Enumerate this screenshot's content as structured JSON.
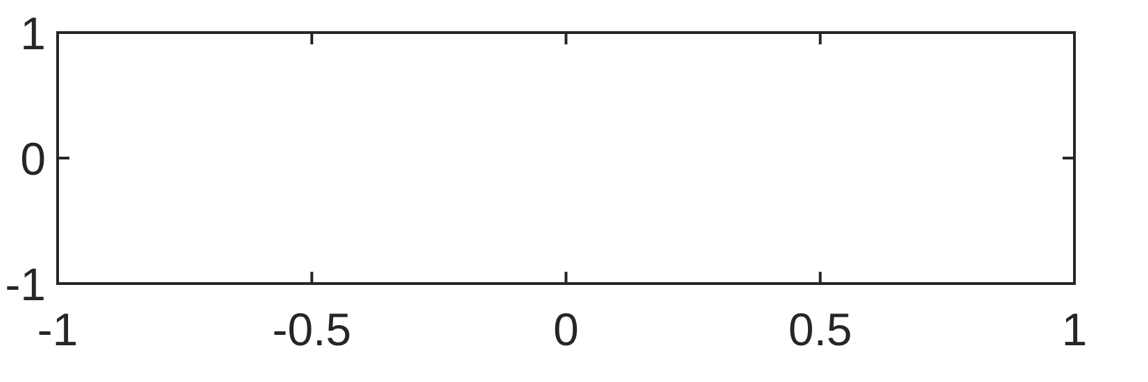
{
  "chart_data": {
    "type": "line",
    "title": "",
    "xlabel": "",
    "ylabel": "",
    "xlim": [
      -1,
      1
    ],
    "ylim": [
      -1,
      1
    ],
    "x_ticks": [
      -1,
      -0.5,
      0,
      0.5,
      1
    ],
    "x_tick_labels": [
      "-1",
      "-0.5",
      "0",
      "0.5",
      "1"
    ],
    "y_ticks": [
      -1,
      0,
      1
    ],
    "y_tick_labels": [
      "-1",
      "0",
      "1"
    ],
    "series": [],
    "grid": false,
    "box": true,
    "colors": {
      "axis": "#262626",
      "background": "#ffffff"
    }
  }
}
